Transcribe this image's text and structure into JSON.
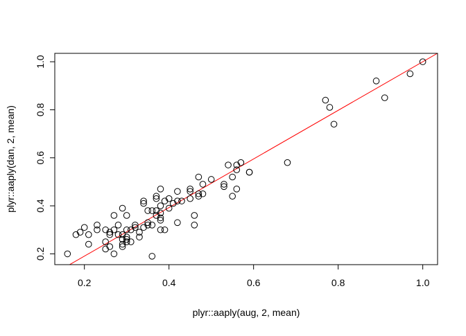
{
  "chart_data": {
    "type": "scatter",
    "title": "",
    "xlabel": "plyr::aaply(aug, 2, mean)",
    "ylabel": "plyr::aaply(dan, 2, mean)",
    "xlim": [
      0.13,
      1.035
    ],
    "ylim": [
      0.155,
      1.035
    ],
    "xticks": [
      0.2,
      0.4,
      0.6,
      0.8,
      1.0
    ],
    "xtick_labels": [
      "0.2",
      "0.4",
      "0.6",
      "0.8",
      "1.0"
    ],
    "yticks": [
      0.2,
      0.4,
      0.6,
      0.8,
      1.0
    ],
    "ytick_labels": [
      "0.2",
      "0.4",
      "0.6",
      "0.8",
      "1.0"
    ],
    "grid": false,
    "point_color": "#000000",
    "fit_line": {
      "color": "#ff0000",
      "intercept": -0.012,
      "slope": 1.012
    },
    "points": [
      {
        "x": 0.16,
        "y": 0.2
      },
      {
        "x": 0.18,
        "y": 0.28
      },
      {
        "x": 0.19,
        "y": 0.29
      },
      {
        "x": 0.2,
        "y": 0.31
      },
      {
        "x": 0.21,
        "y": 0.28
      },
      {
        "x": 0.21,
        "y": 0.24
      },
      {
        "x": 0.23,
        "y": 0.32
      },
      {
        "x": 0.23,
        "y": 0.3
      },
      {
        "x": 0.25,
        "y": 0.3
      },
      {
        "x": 0.25,
        "y": 0.25
      },
      {
        "x": 0.25,
        "y": 0.22
      },
      {
        "x": 0.26,
        "y": 0.28
      },
      {
        "x": 0.26,
        "y": 0.29
      },
      {
        "x": 0.26,
        "y": 0.23
      },
      {
        "x": 0.27,
        "y": 0.3
      },
      {
        "x": 0.27,
        "y": 0.36
      },
      {
        "x": 0.27,
        "y": 0.2
      },
      {
        "x": 0.28,
        "y": 0.28
      },
      {
        "x": 0.28,
        "y": 0.32
      },
      {
        "x": 0.29,
        "y": 0.26
      },
      {
        "x": 0.29,
        "y": 0.24
      },
      {
        "x": 0.29,
        "y": 0.23
      },
      {
        "x": 0.29,
        "y": 0.39
      },
      {
        "x": 0.29,
        "y": 0.28
      },
      {
        "x": 0.3,
        "y": 0.36
      },
      {
        "x": 0.3,
        "y": 0.3
      },
      {
        "x": 0.3,
        "y": 0.27
      },
      {
        "x": 0.3,
        "y": 0.26
      },
      {
        "x": 0.3,
        "y": 0.25
      },
      {
        "x": 0.31,
        "y": 0.25
      },
      {
        "x": 0.31,
        "y": 0.3
      },
      {
        "x": 0.32,
        "y": 0.32
      },
      {
        "x": 0.32,
        "y": 0.31
      },
      {
        "x": 0.33,
        "y": 0.29
      },
      {
        "x": 0.33,
        "y": 0.27
      },
      {
        "x": 0.34,
        "y": 0.42
      },
      {
        "x": 0.34,
        "y": 0.41
      },
      {
        "x": 0.34,
        "y": 0.31
      },
      {
        "x": 0.35,
        "y": 0.38
      },
      {
        "x": 0.35,
        "y": 0.33
      },
      {
        "x": 0.35,
        "y": 0.32
      },
      {
        "x": 0.36,
        "y": 0.38
      },
      {
        "x": 0.36,
        "y": 0.32
      },
      {
        "x": 0.36,
        "y": 0.19
      },
      {
        "x": 0.37,
        "y": 0.44
      },
      {
        "x": 0.37,
        "y": 0.43
      },
      {
        "x": 0.37,
        "y": 0.38
      },
      {
        "x": 0.37,
        "y": 0.36
      },
      {
        "x": 0.38,
        "y": 0.47
      },
      {
        "x": 0.38,
        "y": 0.4
      },
      {
        "x": 0.38,
        "y": 0.37
      },
      {
        "x": 0.38,
        "y": 0.35
      },
      {
        "x": 0.38,
        "y": 0.34
      },
      {
        "x": 0.38,
        "y": 0.3
      },
      {
        "x": 0.39,
        "y": 0.3
      },
      {
        "x": 0.39,
        "y": 0.42
      },
      {
        "x": 0.4,
        "y": 0.43
      },
      {
        "x": 0.4,
        "y": 0.39
      },
      {
        "x": 0.41,
        "y": 0.41
      },
      {
        "x": 0.42,
        "y": 0.46
      },
      {
        "x": 0.42,
        "y": 0.42
      },
      {
        "x": 0.42,
        "y": 0.33
      },
      {
        "x": 0.43,
        "y": 0.42
      },
      {
        "x": 0.45,
        "y": 0.47
      },
      {
        "x": 0.45,
        "y": 0.46
      },
      {
        "x": 0.45,
        "y": 0.43
      },
      {
        "x": 0.46,
        "y": 0.36
      },
      {
        "x": 0.46,
        "y": 0.32
      },
      {
        "x": 0.47,
        "y": 0.52
      },
      {
        "x": 0.47,
        "y": 0.45
      },
      {
        "x": 0.47,
        "y": 0.44
      },
      {
        "x": 0.48,
        "y": 0.49
      },
      {
        "x": 0.48,
        "y": 0.45
      },
      {
        "x": 0.5,
        "y": 0.51
      },
      {
        "x": 0.53,
        "y": 0.49
      },
      {
        "x": 0.53,
        "y": 0.48
      },
      {
        "x": 0.54,
        "y": 0.57
      },
      {
        "x": 0.55,
        "y": 0.52
      },
      {
        "x": 0.55,
        "y": 0.44
      },
      {
        "x": 0.56,
        "y": 0.57
      },
      {
        "x": 0.56,
        "y": 0.55
      },
      {
        "x": 0.56,
        "y": 0.47
      },
      {
        "x": 0.57,
        "y": 0.58
      },
      {
        "x": 0.59,
        "y": 0.54
      },
      {
        "x": 0.59,
        "y": 0.54
      },
      {
        "x": 0.68,
        "y": 0.58
      },
      {
        "x": 0.77,
        "y": 0.84
      },
      {
        "x": 0.78,
        "y": 0.81
      },
      {
        "x": 0.79,
        "y": 0.74
      },
      {
        "x": 0.89,
        "y": 0.92
      },
      {
        "x": 0.91,
        "y": 0.85
      },
      {
        "x": 0.97,
        "y": 0.95
      },
      {
        "x": 1.0,
        "y": 1.0
      }
    ]
  }
}
